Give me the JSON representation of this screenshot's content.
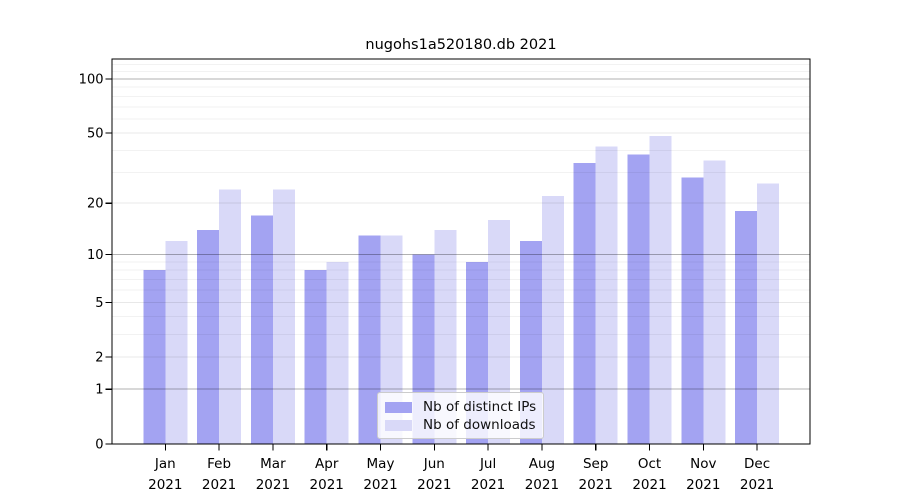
{
  "title": "nugohs1a520180.db 2021",
  "colors": {
    "ips": "#a3a3f2",
    "downloads": "#d9d9f8"
  },
  "legend": {
    "items": [
      {
        "label": "Nb of distinct IPs",
        "series": "ips"
      },
      {
        "label": "Nb of downloads",
        "series": "downloads"
      }
    ]
  },
  "chart_data": {
    "type": "bar",
    "title": "nugohs1a520180.db 2021",
    "yscale": "log1p",
    "grid": "on",
    "legend_position": "lower center",
    "year_label": "2021",
    "categories": [
      "Jan",
      "Feb",
      "Mar",
      "Apr",
      "May",
      "Jun",
      "Jul",
      "Aug",
      "Sep",
      "Oct",
      "Nov",
      "Dec"
    ],
    "series": [
      {
        "name": "Nb of distinct IPs",
        "color_key": "ips",
        "values": [
          8,
          14,
          17,
          8,
          13,
          10,
          9,
          12,
          34,
          38,
          28,
          18
        ]
      },
      {
        "name": "Nb of downloads",
        "color_key": "downloads",
        "values": [
          12,
          24,
          24,
          9,
          13,
          14,
          16,
          22,
          42,
          48,
          35,
          26
        ]
      }
    ],
    "y_major_ticks": [
      0,
      1,
      2,
      5,
      10,
      20,
      50,
      100
    ],
    "y_decade_gridlines": [
      1,
      10,
      100
    ],
    "y_minor_gridlines": [
      3,
      4,
      6,
      7,
      8,
      9,
      30,
      40,
      60,
      70,
      80,
      90,
      110,
      120
    ],
    "ylim": [
      0,
      129
    ]
  }
}
